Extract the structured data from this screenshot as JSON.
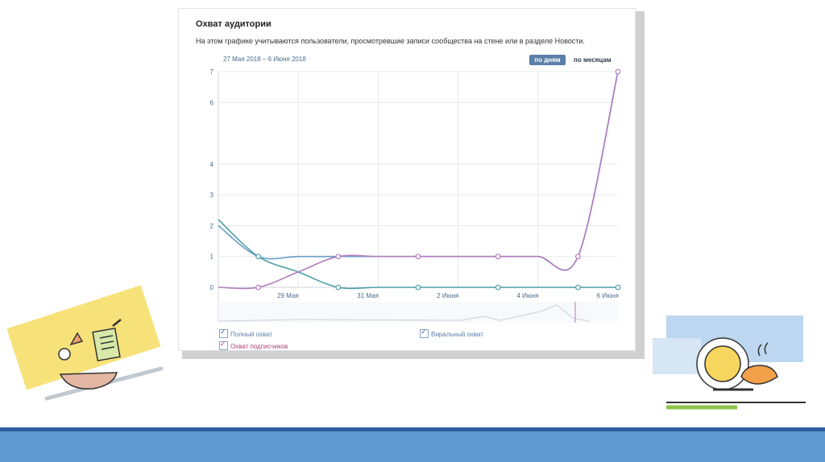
{
  "card": {
    "title": "Охват аудитории",
    "description": "На этом графике учитываются пользователи, просмотревшие записи сообщества на стене или в разделе Новости.",
    "date_range": "27 Мая 2018 – 6 Июня 2018",
    "btn_days": "по дням",
    "btn_months": "по месяцам"
  },
  "legend": {
    "full": "Полный охват",
    "viral": "Виральный охват",
    "subscribers": "Охват подписчиков"
  },
  "colors": {
    "full": "#6a9ec7",
    "viral": "#4f9ea6",
    "subscribers": "#b07cc0",
    "band": "#5f9bd0",
    "band_line": "#2f5fa0"
  },
  "chart_data": {
    "type": "line",
    "x": [
      "27 Мая",
      "28 Мая",
      "29 Мая",
      "30 Мая",
      "31 Мая",
      "1 Июня",
      "2 Июня",
      "3 Июня",
      "4 Июня",
      "5 Июня",
      "6 Июня"
    ],
    "x_tick_labels": [
      "29 Мая",
      "31 Мая",
      "2 Июня",
      "4 Июня",
      "6 Июня"
    ],
    "y_ticks": [
      "0",
      "1",
      "2",
      "3",
      "4",
      "6",
      "7"
    ],
    "ylim": [
      0,
      7
    ],
    "grid": true,
    "legend_position": "bottom",
    "series": [
      {
        "name": "Полный охват",
        "color": "#6a9ec7",
        "values": [
          2,
          1,
          1,
          1,
          1,
          1,
          1,
          1,
          1,
          1,
          7
        ]
      },
      {
        "name": "Виральный охват",
        "color": "#4f9ea6",
        "values": [
          2.2,
          1,
          0.5,
          0,
          0,
          0,
          0,
          0,
          0,
          0,
          0
        ]
      },
      {
        "name": "Охват подписчиков",
        "color": "#b07cc0",
        "values": [
          0,
          0,
          0.5,
          1,
          1,
          1,
          1,
          1,
          1,
          1,
          7
        ]
      }
    ]
  }
}
